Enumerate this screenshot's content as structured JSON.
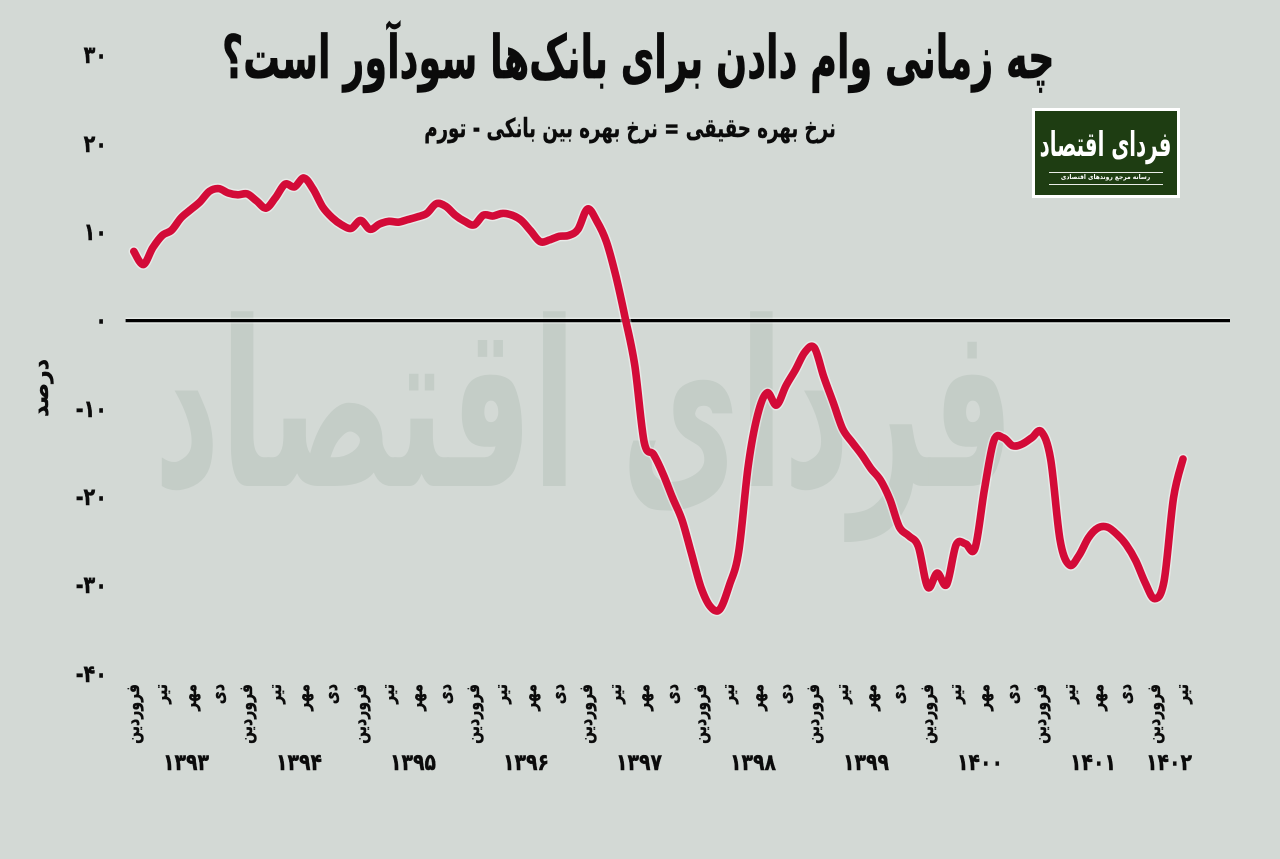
{
  "page": {
    "background_color": "#d3d9d5",
    "text_color": "#0b0b0b"
  },
  "header": {
    "title": "چه زمانی وام دادن برای بانک‌ها سودآور است؟",
    "subtitle": "نرخ بهره حقیقی = نرخ بهره بین بانکی - تورم"
  },
  "logo": {
    "name": "فردای اقتصاد",
    "tagline": "رسانه مرجع روندهای اقتصادی",
    "background_color": "#1e3d12",
    "text_color": "#ffffff"
  },
  "watermark": {
    "text": "فردای اقتصاد",
    "color": "#c4cdc7"
  },
  "chart_data": {
    "type": "line",
    "title": "چه زمانی وام دادن برای بانک‌ها سودآور است؟",
    "subtitle": "نرخ بهره حقیقی = نرخ بهره بین بانکی - تورم",
    "ylabel": "درصد",
    "line_color": "#d30b38",
    "zero_line_color": "#000000",
    "ylim": [
      -40,
      30
    ],
    "yticks": [
      {
        "value": 30,
        "label": "۳۰"
      },
      {
        "value": 20,
        "label": "۲۰"
      },
      {
        "value": 10,
        "label": "۱۰"
      },
      {
        "value": 0,
        "label": "۰"
      },
      {
        "value": -10,
        "label": "-۱۰"
      },
      {
        "value": -20,
        "label": "-۲۰"
      },
      {
        "value": -30,
        "label": "-۳۰"
      },
      {
        "value": -40,
        "label": "-۴۰"
      }
    ],
    "x_tick_step_months": 3,
    "x_tick_labels": [
      "فروردین",
      "تیر",
      "مهر",
      "دی",
      "فروردین",
      "تیر",
      "مهر",
      "دی",
      "فروردین",
      "تیر",
      "مهر",
      "دی",
      "فروردین",
      "تیر",
      "مهر",
      "دی",
      "فروردین",
      "تیر",
      "مهر",
      "دی",
      "فروردین",
      "تیر",
      "مهر",
      "دی",
      "فروردین",
      "تیر",
      "مهر",
      "دی",
      "فروردین",
      "تیر",
      "مهر",
      "دی",
      "فروردین",
      "تیر",
      "مهر",
      "دی",
      "فروردین",
      "تیر"
    ],
    "year_labels": [
      "۱۳۹۳",
      "۱۳۹۴",
      "۱۳۹۵",
      "۱۳۹۶",
      "۱۳۹۷",
      "۱۳۹۸",
      "۱۳۹۹",
      "۱۴۰۰",
      "۱۴۰۱",
      "۱۴۰۲"
    ],
    "series": [
      {
        "name": "نرخ بهره حقیقی",
        "start_month": "فروردین ۱۳۹۳",
        "end_month": "تیر ۱۴۰۲",
        "values": [
          7.8,
          6.3,
          8.2,
          9.6,
          10.2,
          11.6,
          12.5,
          13.4,
          14.6,
          14.9,
          14.4,
          14.2,
          14.3,
          13.5,
          12.7,
          13.9,
          15.4,
          15.1,
          16.1,
          14.8,
          12.8,
          11.6,
          10.8,
          10.4,
          11.3,
          10.3,
          10.9,
          11.2,
          11.1,
          11.4,
          11.7,
          12.1,
          13.2,
          12.9,
          11.9,
          11.2,
          10.8,
          11.9,
          11.8,
          12.1,
          11.9,
          11.3,
          10.1,
          8.9,
          9.1,
          9.5,
          9.6,
          10.3,
          12.6,
          11.2,
          8.9,
          5.0,
          0.2,
          -5.1,
          -13.8,
          -15.2,
          -17.4,
          -20.1,
          -22.6,
          -26.4,
          -30.2,
          -32.4,
          -32.7,
          -30.0,
          -26.2,
          -16.5,
          -10.7,
          -8.2,
          -9.6,
          -7.4,
          -5.6,
          -3.6,
          -3.1,
          -6.4,
          -9.3,
          -12.3,
          -13.8,
          -15.2,
          -16.8,
          -18.1,
          -20.3,
          -23.4,
          -24.4,
          -25.6,
          -30.2,
          -28.6,
          -29.9,
          -25.4,
          -25.3,
          -25.8,
          -19.1,
          -13.6,
          -13.3,
          -14.2,
          -14.0,
          -13.3,
          -12.6,
          -15.7,
          -24.9,
          -27.7,
          -26.6,
          -24.6,
          -23.5,
          -23.4,
          -24.2,
          -25.4,
          -27.2,
          -29.7,
          -31.5,
          -29.5,
          -20.1,
          -15.7
        ]
      }
    ],
    "legend": null,
    "grid": false
  }
}
